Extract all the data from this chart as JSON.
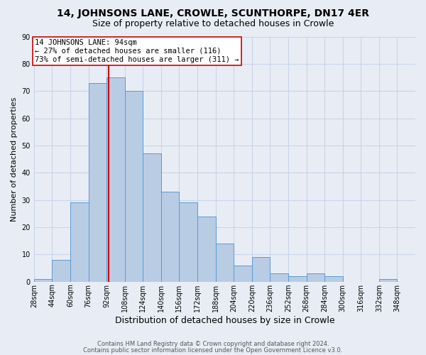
{
  "title": "14, JOHNSONS LANE, CROWLE, SCUNTHORPE, DN17 4ER",
  "subtitle": "Size of property relative to detached houses in Crowle",
  "xlabel": "Distribution of detached houses by size in Crowle",
  "ylabel": "Number of detached properties",
  "bin_labels": [
    "28sqm",
    "44sqm",
    "60sqm",
    "76sqm",
    "92sqm",
    "108sqm",
    "124sqm",
    "140sqm",
    "156sqm",
    "172sqm",
    "188sqm",
    "204sqm",
    "220sqm",
    "236sqm",
    "252sqm",
    "268sqm",
    "284sqm",
    "300sqm",
    "316sqm",
    "332sqm",
    "348sqm"
  ],
  "bin_starts": [
    28,
    44,
    60,
    76,
    92,
    108,
    124,
    140,
    156,
    172,
    188,
    204,
    220,
    236,
    252,
    268,
    284,
    300,
    316,
    332,
    348
  ],
  "bin_width": 16,
  "bar_heights": [
    1,
    8,
    29,
    73,
    75,
    70,
    47,
    33,
    29,
    24,
    14,
    6,
    9,
    3,
    2,
    3,
    2,
    0,
    0,
    1
  ],
  "bar_color": "#b8cce4",
  "bar_edge_color": "#5b9bd5",
  "property_line_x": 94,
  "property_line_color": "#cc0000",
  "annotation_line1": "14 JOHNSONS LANE: 94sqm",
  "annotation_line2": "← 27% of detached houses are smaller (116)",
  "annotation_line3": "73% of semi-detached houses are larger (311) →",
  "annotation_box_color": "#ffffff",
  "annotation_box_edge": "#cc0000",
  "ylim": [
    0,
    90
  ],
  "yticks": [
    0,
    10,
    20,
    30,
    40,
    50,
    60,
    70,
    80,
    90
  ],
  "grid_color": "#c8d4e8",
  "background_color": "#e8edf5",
  "footer_line1": "Contains HM Land Registry data © Crown copyright and database right 2024.",
  "footer_line2": "Contains public sector information licensed under the Open Government Licence v3.0.",
  "title_fontsize": 10,
  "subtitle_fontsize": 9,
  "ylabel_fontsize": 8,
  "xlabel_fontsize": 9,
  "tick_fontsize": 7,
  "annotation_fontsize": 7.5,
  "footer_fontsize": 6
}
